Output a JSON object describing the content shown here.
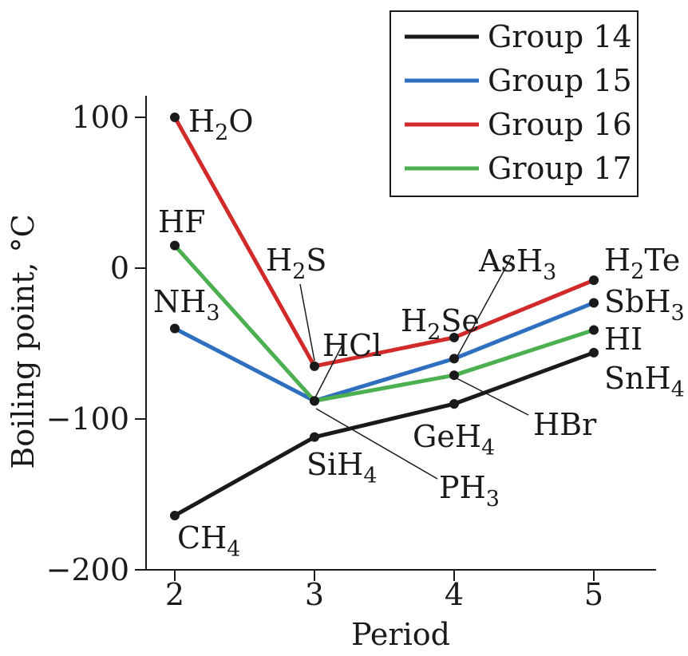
{
  "chart_data": {
    "type": "line",
    "xlabel": "Period",
    "ylabel": "Boiling point, °C",
    "x": [
      2,
      3,
      4,
      5
    ],
    "xlim": [
      1.8,
      5.45
    ],
    "ylim": [
      -200,
      115
    ],
    "xticks": [
      2,
      3,
      4,
      5
    ],
    "yticks": [
      100,
      0,
      -100,
      -200
    ],
    "ytick_labels": [
      "100",
      "0",
      "−100",
      "−200"
    ],
    "grid": false,
    "legend_position": "top-right",
    "series": [
      {
        "name": "Group 14",
        "color": "#1a1a1a",
        "values": [
          -164,
          -112,
          -90,
          -56
        ],
        "point_labels": [
          {
            "main": "CH",
            "sub": "4",
            "tail": ""
          },
          {
            "main": "SiH",
            "sub": "4",
            "tail": ""
          },
          {
            "main": "GeH",
            "sub": "4",
            "tail": ""
          },
          {
            "main": "SnH",
            "sub": "4",
            "tail": ""
          }
        ]
      },
      {
        "name": "Group 15",
        "color": "#2e6fbf",
        "values": [
          -40,
          -88,
          -60,
          -23
        ],
        "point_labels": [
          {
            "main": "NH",
            "sub": "3",
            "tail": ""
          },
          {
            "main": "PH",
            "sub": "3",
            "tail": ""
          },
          {
            "main": "AsH",
            "sub": "3",
            "tail": ""
          },
          {
            "main": "SbH",
            "sub": "3",
            "tail": ""
          }
        ]
      },
      {
        "name": "Group 16",
        "color": "#d12a2a",
        "values": [
          100,
          -65,
          -46,
          -8
        ],
        "point_labels": [
          {
            "main": "H",
            "sub": "2",
            "tail": "O"
          },
          {
            "main": "H",
            "sub": "2",
            "tail": "S"
          },
          {
            "main": "H",
            "sub": "2",
            "tail": "Se"
          },
          {
            "main": "H",
            "sub": "2",
            "tail": "Te"
          }
        ]
      },
      {
        "name": "Group 17",
        "color": "#4caf50",
        "values": [
          15,
          -88,
          -71,
          -41
        ],
        "point_labels": [
          {
            "main": "HF",
            "sub": "",
            "tail": ""
          },
          {
            "main": "HCl",
            "sub": "",
            "tail": ""
          },
          {
            "main": "HBr",
            "sub": "",
            "tail": ""
          },
          {
            "main": "HI",
            "sub": "",
            "tail": ""
          }
        ]
      }
    ]
  }
}
